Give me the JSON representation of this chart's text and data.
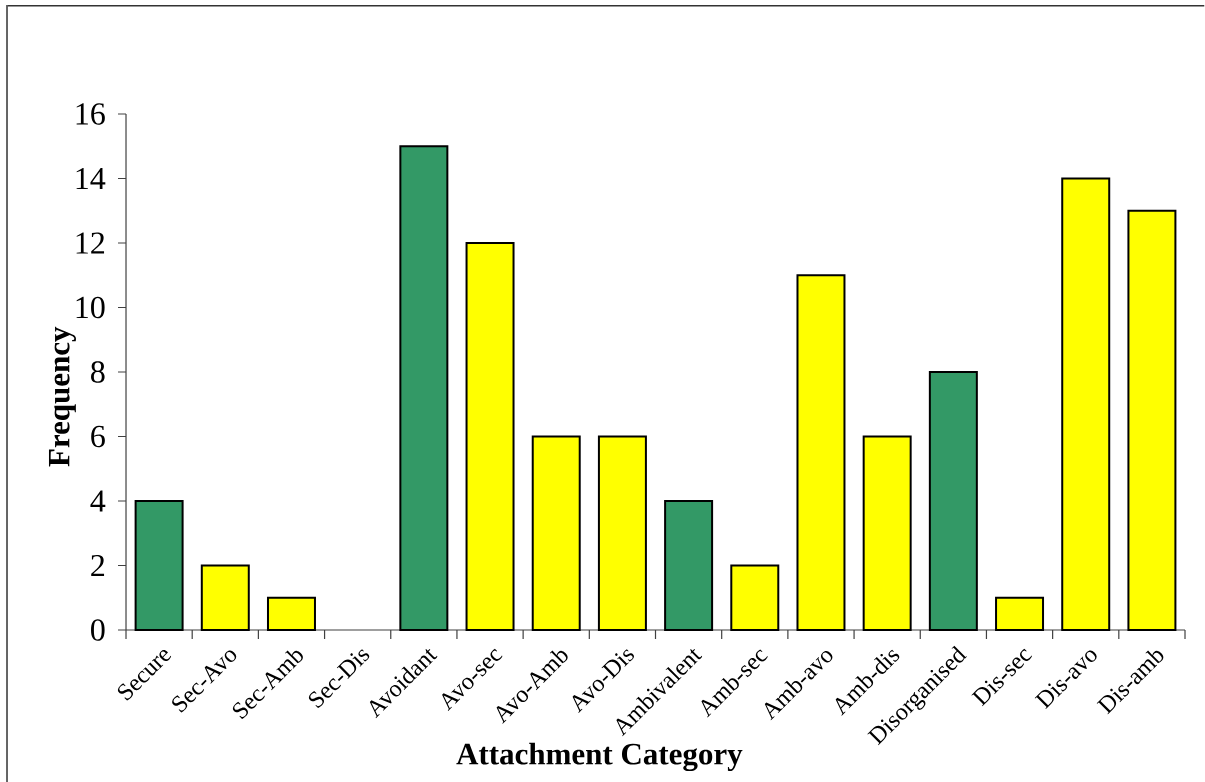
{
  "chart_data": {
    "type": "bar",
    "xlabel": "Attachment Category",
    "ylabel": "Frequency",
    "categories": [
      "Secure",
      "Sec-Avo",
      "Sec-Amb",
      "Sec-Dis",
      "Avoidant",
      "Avo-sec",
      "Avo-Amb",
      "Avo-Dis",
      "Ambivalent",
      "Amb-sec",
      "Amb-avo",
      "Amb-dis",
      "Disorganised",
      "Dis-sec",
      "Dis-avo",
      "Dis-amb"
    ],
    "values": [
      4,
      2,
      1,
      0,
      15,
      12,
      6,
      6,
      4,
      2,
      11,
      6,
      8,
      1,
      14,
      13
    ],
    "colors": [
      "#339966",
      "#ffff00",
      "#ffff00",
      "#ffff00",
      "#339966",
      "#ffff00",
      "#ffff00",
      "#ffff00",
      "#339966",
      "#ffff00",
      "#ffff00",
      "#ffff00",
      "#339966",
      "#ffff00",
      "#ffff00",
      "#ffff00"
    ],
    "ylim": [
      0,
      16
    ],
    "yticks": [
      0,
      2,
      4,
      6,
      8,
      10,
      12,
      14,
      16
    ]
  }
}
